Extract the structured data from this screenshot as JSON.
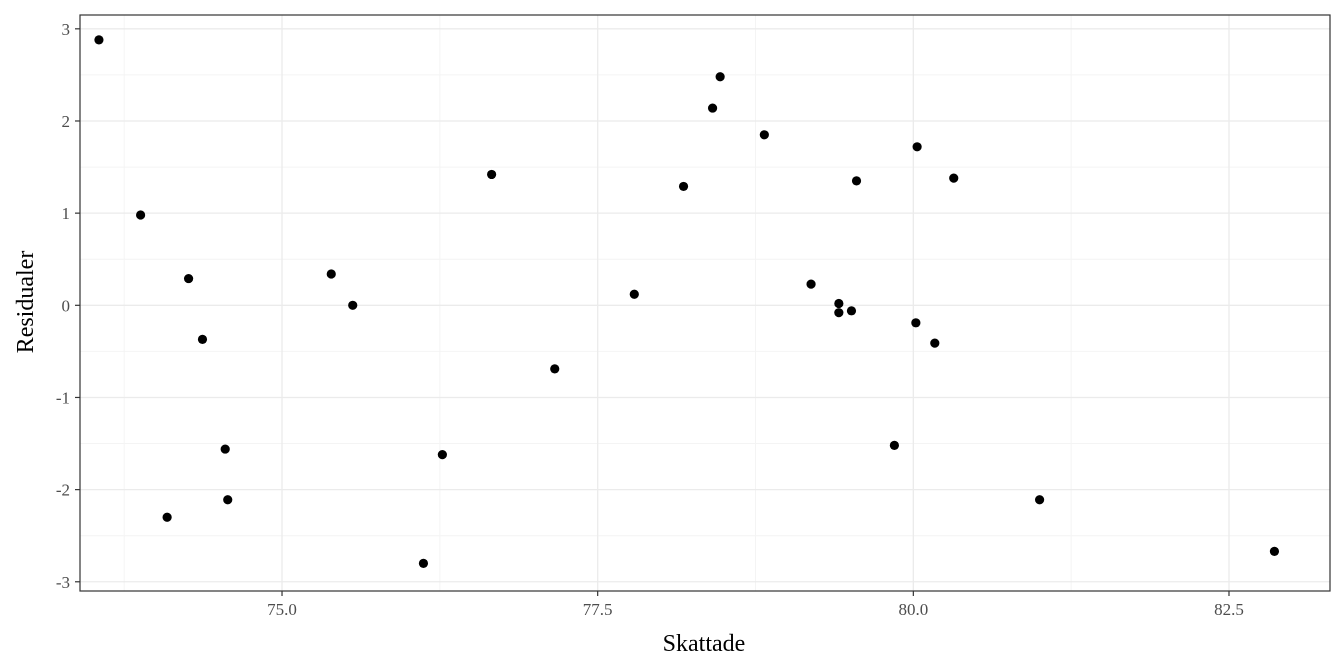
{
  "chart_data": {
    "type": "scatter",
    "title": "",
    "xlabel": "Skattade",
    "ylabel": "Residualer",
    "xlim": [
      73.4,
      83.3
    ],
    "ylim": [
      -3.1,
      3.15
    ],
    "x_ticks": [
      75.0,
      77.5,
      80.0,
      82.5
    ],
    "x_tick_labels": [
      "75.0",
      "77.5",
      "80.0",
      "82.5"
    ],
    "y_ticks": [
      3,
      2,
      1,
      0,
      -1,
      -2,
      -3
    ],
    "y_tick_labels": [
      "3",
      "2",
      "1",
      "0",
      "-1",
      "-2",
      "-3"
    ],
    "grid": true,
    "legend": "none",
    "colors": {
      "point": "#000000",
      "grid_major": "#ebebeb",
      "grid_minor": "#f4f4f4",
      "panel_border": "#333333"
    },
    "points": [
      {
        "x": 73.55,
        "y": 2.88
      },
      {
        "x": 73.88,
        "y": 0.98
      },
      {
        "x": 74.09,
        "y": -2.3
      },
      {
        "x": 74.26,
        "y": 0.29
      },
      {
        "x": 74.37,
        "y": -0.37
      },
      {
        "x": 74.55,
        "y": -1.56
      },
      {
        "x": 74.57,
        "y": -2.11
      },
      {
        "x": 75.39,
        "y": 0.34
      },
      {
        "x": 75.56,
        "y": 0.0
      },
      {
        "x": 76.12,
        "y": -2.8
      },
      {
        "x": 76.27,
        "y": -1.62
      },
      {
        "x": 76.66,
        "y": 1.42
      },
      {
        "x": 77.16,
        "y": -0.69
      },
      {
        "x": 77.79,
        "y": 0.12
      },
      {
        "x": 78.18,
        "y": 1.29
      },
      {
        "x": 78.41,
        "y": 2.14
      },
      {
        "x": 78.47,
        "y": 2.48
      },
      {
        "x": 78.82,
        "y": 1.85
      },
      {
        "x": 79.19,
        "y": 0.23
      },
      {
        "x": 79.41,
        "y": 0.02
      },
      {
        "x": 79.41,
        "y": -0.08
      },
      {
        "x": 79.51,
        "y": -0.06
      },
      {
        "x": 79.55,
        "y": 1.35
      },
      {
        "x": 79.85,
        "y": -1.52
      },
      {
        "x": 80.02,
        "y": -0.19
      },
      {
        "x": 80.03,
        "y": 1.72
      },
      {
        "x": 80.17,
        "y": -0.41
      },
      {
        "x": 80.32,
        "y": 1.38
      },
      {
        "x": 81.0,
        "y": -2.11
      },
      {
        "x": 82.86,
        "y": -2.67
      }
    ]
  }
}
